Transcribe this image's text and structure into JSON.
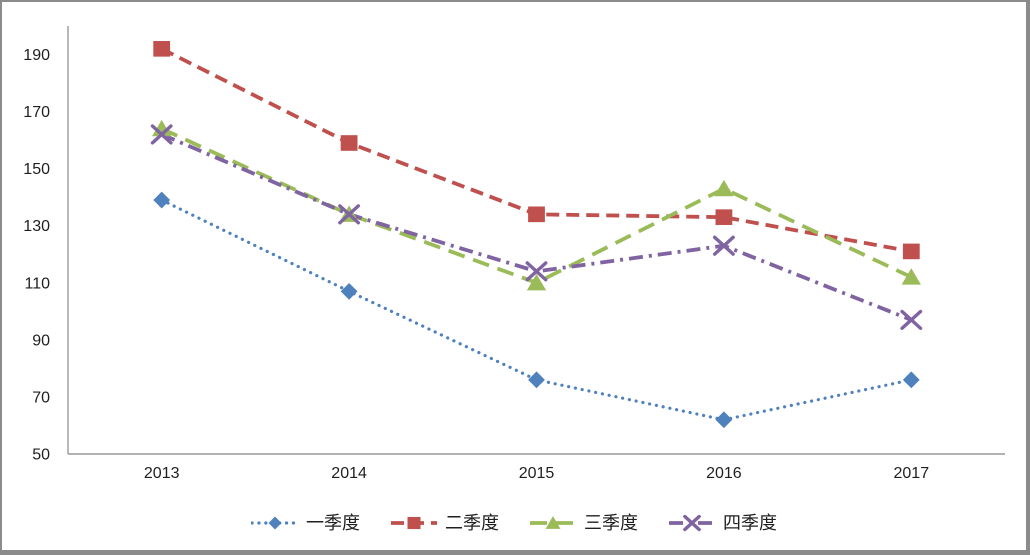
{
  "chart_data": {
    "type": "line",
    "title": "",
    "categories": [
      "2013",
      "2014",
      "2015",
      "2016",
      "2017"
    ],
    "series": [
      {
        "name": "一季度",
        "color": "#4F81BD",
        "marker": "diamond",
        "line_style": "dotted",
        "values": [
          139,
          107,
          76,
          62,
          76
        ]
      },
      {
        "name": "二季度",
        "color": "#C0504D",
        "marker": "square",
        "line_style": "dashed",
        "values": [
          192,
          159,
          134,
          133,
          121
        ]
      },
      {
        "name": "三季度",
        "color": "#9BBB59",
        "marker": "triangle",
        "line_style": "long-dash",
        "values": [
          164,
          134,
          110,
          143,
          112
        ]
      },
      {
        "name": "四季度",
        "color": "#8064A2",
        "marker": "x",
        "line_style": "dash-dot",
        "values": [
          162,
          134,
          114,
          123,
          97
        ]
      }
    ],
    "x_axis": {
      "labels": [
        "2013",
        "2014",
        "2015",
        "2016",
        "2017"
      ]
    },
    "y_axis": {
      "min": 50,
      "max": 200,
      "tick_interval": 20,
      "tick_labels": [
        "50",
        "70",
        "90",
        "110",
        "130",
        "150",
        "170",
        "190"
      ]
    },
    "ylim": [
      50,
      200
    ],
    "grid": false,
    "legend": {
      "position": "bottom",
      "items": [
        "一季度",
        "二季度",
        "三季度",
        "四季度"
      ]
    },
    "axis_color": "#999999",
    "text_color": "#1f1f1f",
    "background": "#FFFFFF",
    "border_color": "#8b8b8b"
  }
}
